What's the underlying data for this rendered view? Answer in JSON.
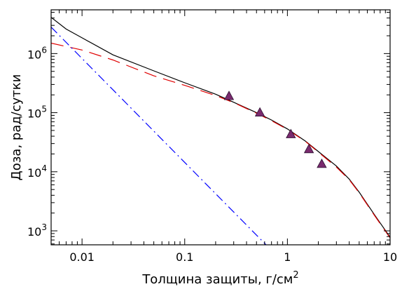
{
  "chart_data": {
    "type": "line",
    "xlabel": "Толщина защиты, г/см",
    "xlabel_sup": "2",
    "ylabel": "Доза, рад/сутки",
    "xscale": "log",
    "yscale": "log",
    "xlim": [
      0.005,
      10
    ],
    "ylim": [
      580,
      5500000
    ],
    "xticks": [
      {
        "value": 0.01,
        "label": "0.01"
      },
      {
        "value": 0.1,
        "label": "0.1"
      },
      {
        "value": 1,
        "label": "1"
      },
      {
        "value": 10,
        "label": "10"
      }
    ],
    "yticks": [
      {
        "value": 1000,
        "base": "10",
        "exp": "3"
      },
      {
        "value": 10000,
        "base": "10",
        "exp": "4"
      },
      {
        "value": 100000,
        "base": "10",
        "exp": "5"
      },
      {
        "value": 1000000,
        "base": "10",
        "exp": "6"
      }
    ],
    "series": [
      {
        "style": "solid",
        "color": "#000000",
        "points": [
          [
            0.005,
            4100000
          ],
          [
            0.007,
            2600000
          ],
          [
            0.01,
            1850000
          ],
          [
            0.02,
            950000
          ],
          [
            0.05,
            510000
          ],
          [
            0.1,
            320000
          ],
          [
            0.2,
            205000
          ],
          [
            0.3,
            150000
          ],
          [
            0.5,
            100000
          ],
          [
            0.7,
            75000
          ],
          [
            1,
            53000
          ],
          [
            1.5,
            33000
          ],
          [
            2,
            22000
          ],
          [
            3,
            12500
          ],
          [
            4,
            7500
          ],
          [
            5,
            4500
          ],
          [
            7,
            1900
          ],
          [
            10,
            780
          ]
        ]
      },
      {
        "style": "longdash",
        "color": "#e00000",
        "points": [
          [
            0.005,
            1500000
          ],
          [
            0.01,
            1150000
          ],
          [
            0.02,
            780000
          ],
          [
            0.05,
            420000
          ],
          [
            0.1,
            290000
          ],
          [
            0.2,
            195000
          ],
          [
            0.3,
            148000
          ],
          [
            0.5,
            98000
          ],
          [
            0.7,
            73000
          ],
          [
            1,
            52000
          ],
          [
            1.5,
            32500
          ],
          [
            2,
            21500
          ],
          [
            3,
            12000
          ],
          [
            4,
            7300
          ],
          [
            5,
            4400
          ],
          [
            7,
            1850
          ],
          [
            10,
            760
          ]
        ]
      },
      {
        "style": "dashdot",
        "color": "#0000ff",
        "points": [
          [
            0.005,
            2800000
          ],
          [
            0.62,
            580
          ]
        ]
      }
    ],
    "markers": {
      "shape": "triangle",
      "fill": "#7a2a6e",
      "points": [
        [
          0.27,
          190000
        ],
        [
          0.54,
          100000
        ],
        [
          1.08,
          43000
        ],
        [
          1.62,
          24000
        ],
        [
          2.16,
          13500
        ]
      ]
    }
  }
}
